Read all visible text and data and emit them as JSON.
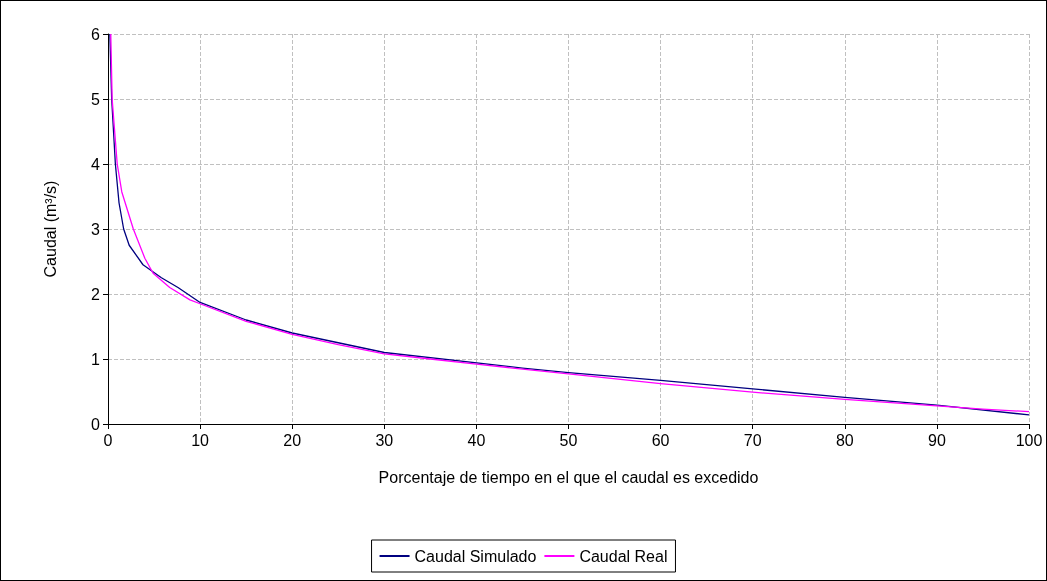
{
  "chart_data": {
    "type": "line",
    "xlabel": "Porcentaje de tiempo en el que el caudal es excedido",
    "ylabel": "Caudal (m³/s)",
    "xlim": [
      0,
      100
    ],
    "xticks": [
      0,
      10,
      20,
      30,
      40,
      50,
      60,
      70,
      80,
      90,
      100
    ],
    "ylim": [
      0,
      6
    ],
    "yticks": [
      0,
      1,
      2,
      3,
      4,
      5,
      6
    ],
    "grid": true,
    "legend": "bottom",
    "marker": "none",
    "line_style": "solid",
    "series": [
      {
        "name": "Caudal Simulado",
        "color": "#000080",
        "x": [
          0.2,
          0.4,
          0.8,
          1.2,
          1.7,
          2.3,
          3.8,
          5.8,
          7.6,
          10,
          15,
          20,
          25,
          30,
          45,
          50,
          60,
          70,
          80,
          90,
          100
        ],
        "values": [
          6,
          5,
          4,
          3.4,
          3,
          2.75,
          2.45,
          2.25,
          2.1,
          1.87,
          1.6,
          1.4,
          1.25,
          1.1,
          0.86,
          0.79,
          0.67,
          0.54,
          0.41,
          0.29,
          0.14
        ]
      },
      {
        "name": "Caudal Real",
        "color": "#ff00ff",
        "x": [
          0.3,
          0.45,
          1,
          1.5,
          2.75,
          4,
          4.9,
          6.7,
          8.9,
          10,
          15,
          20,
          25,
          30,
          35,
          40,
          50,
          60,
          70,
          80,
          90,
          95,
          100
        ],
        "values": [
          6,
          5,
          4,
          3.57,
          3,
          2.55,
          2.32,
          2.1,
          1.91,
          1.85,
          1.58,
          1.38,
          1.22,
          1.08,
          1.0,
          0.92,
          0.77,
          0.62,
          0.49,
          0.38,
          0.28,
          0.23,
          0.19
        ]
      }
    ]
  }
}
